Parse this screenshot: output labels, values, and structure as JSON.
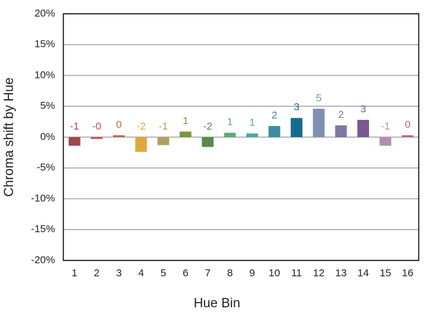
{
  "chart_data": {
    "type": "bar",
    "x_label": "Hue Bin",
    "y_label": "Chroma shift by Hue",
    "categories": [
      "1",
      "2",
      "3",
      "4",
      "5",
      "6",
      "7",
      "8",
      "9",
      "10",
      "11",
      "12",
      "13",
      "14",
      "15",
      "16"
    ],
    "values": [
      -1.4,
      -0.3,
      0.3,
      -2.4,
      -1.3,
      0.9,
      -1.6,
      0.7,
      0.6,
      1.8,
      3.1,
      4.6,
      1.9,
      2.8,
      -1.4,
      0.3
    ],
    "value_labels": [
      "-1",
      "-0",
      "0",
      "-2",
      "-1",
      "1",
      "-2",
      "1",
      "1",
      "2",
      "3",
      "5",
      "2",
      "3",
      "-1",
      "0"
    ],
    "colors": [
      "#a0464f",
      "#c0504d",
      "#c5663a",
      "#e0a83a",
      "#b0a060",
      "#7a9a3a",
      "#5a8a4a",
      "#5aaa7a",
      "#4aaa9a",
      "#3a8ea0",
      "#1a6a90",
      "#8090b0",
      "#7a7aa0",
      "#7a5a90",
      "#b090b0",
      "#c06080"
    ],
    "ylim": [
      -20,
      20
    ],
    "yticks": [
      {
        "value": -20,
        "label": "-20%"
      },
      {
        "value": -15,
        "label": "-15%"
      },
      {
        "value": -10,
        "label": "-10%"
      },
      {
        "value": -5,
        "label": "-5%"
      },
      {
        "value": 0,
        "label": "0%"
      },
      {
        "value": 5,
        "label": "5%"
      },
      {
        "value": 10,
        "label": "10%"
      },
      {
        "value": 15,
        "label": "15%"
      },
      {
        "value": 20,
        "label": "20%"
      }
    ],
    "grid": true
  }
}
